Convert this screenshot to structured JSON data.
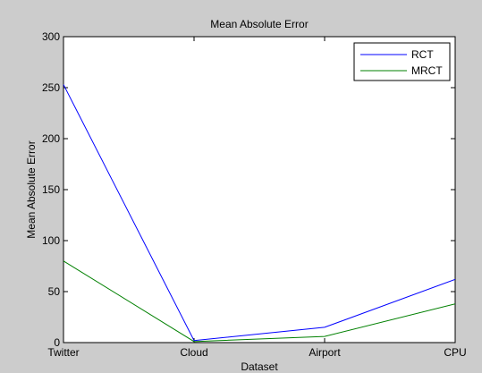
{
  "figure": {
    "background": "#cccccc",
    "plot_background": "#ffffff"
  },
  "chart_data": {
    "type": "line",
    "title": "Mean Absolute Error",
    "xlabel": "Dataset",
    "ylabel": "Mean Absolute Error",
    "categories": [
      "Twitter",
      "Cloud",
      "Airport",
      "CPU"
    ],
    "ylim": [
      0,
      300
    ],
    "yticks": [
      0,
      50,
      100,
      150,
      200,
      250,
      300
    ],
    "grid": false,
    "legend_position": "top-right",
    "series": [
      {
        "name": "RCT",
        "color": "#0000ff",
        "values": [
          253,
          2,
          15,
          62
        ]
      },
      {
        "name": "MRCT",
        "color": "#008000",
        "values": [
          80,
          1,
          6,
          38
        ]
      }
    ]
  }
}
